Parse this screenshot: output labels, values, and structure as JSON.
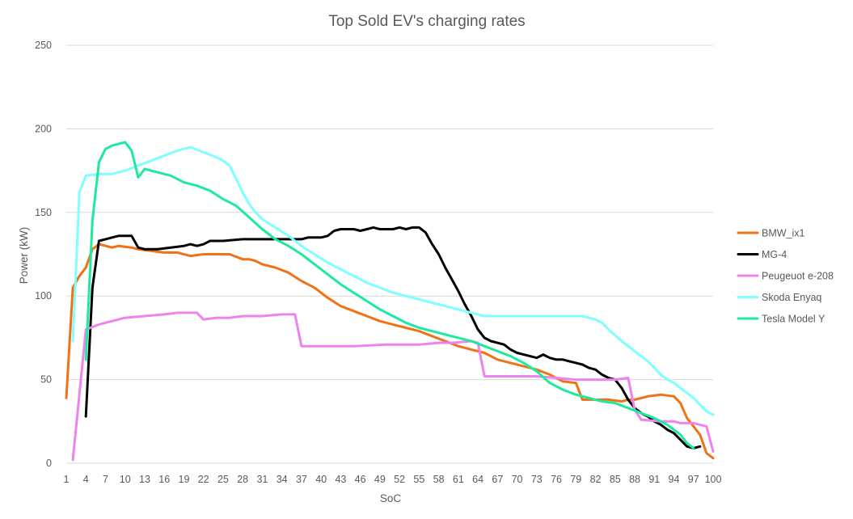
{
  "chart_data": {
    "type": "line",
    "title": "Top Sold EV's charging rates",
    "xlabel": "SoC",
    "ylabel": "Power (kW)",
    "xlim": [
      1,
      100
    ],
    "ylim": [
      0,
      250
    ],
    "yticks": [
      "0",
      "50",
      "100",
      "150",
      "200",
      "250"
    ],
    "xticks": [
      "1",
      "4",
      "7",
      "10",
      "13",
      "16",
      "19",
      "22",
      "25",
      "28",
      "31",
      "34",
      "37",
      "40",
      "43",
      "46",
      "49",
      "52",
      "55",
      "58",
      "61",
      "64",
      "67",
      "70",
      "73",
      "76",
      "79",
      "82",
      "85",
      "88",
      "91",
      "94",
      "97",
      "100"
    ],
    "grid": true,
    "legend_position": "right",
    "series": [
      {
        "name": "BMW_ix1",
        "color": "#F07216",
        "points": [
          [
            1,
            39
          ],
          [
            2,
            105
          ],
          [
            3,
            112
          ],
          [
            4,
            117
          ],
          [
            5,
            128
          ],
          [
            6,
            131
          ],
          [
            8,
            129
          ],
          [
            9,
            130
          ],
          [
            11,
            129
          ],
          [
            12,
            128
          ],
          [
            14,
            127
          ],
          [
            16,
            126
          ],
          [
            18,
            126
          ],
          [
            20,
            124
          ],
          [
            22,
            125
          ],
          [
            24,
            125
          ],
          [
            26,
            125
          ],
          [
            28,
            122
          ],
          [
            29,
            122
          ],
          [
            30,
            121
          ],
          [
            31,
            119
          ],
          [
            33,
            117
          ],
          [
            35,
            114
          ],
          [
            37,
            109
          ],
          [
            39,
            105
          ],
          [
            41,
            99
          ],
          [
            43,
            94
          ],
          [
            45,
            91
          ],
          [
            47,
            88
          ],
          [
            49,
            85
          ],
          [
            51,
            83
          ],
          [
            53,
            81
          ],
          [
            55,
            79
          ],
          [
            57,
            76
          ],
          [
            59,
            73
          ],
          [
            61,
            70
          ],
          [
            63,
            68
          ],
          [
            65,
            66
          ],
          [
            67,
            62
          ],
          [
            69,
            60
          ],
          [
            71,
            58
          ],
          [
            73,
            56
          ],
          [
            75,
            53
          ],
          [
            77,
            49
          ],
          [
            79,
            48
          ],
          [
            80,
            38
          ],
          [
            82,
            38
          ],
          [
            84,
            38
          ],
          [
            86,
            37
          ],
          [
            87,
            38
          ],
          [
            88,
            38
          ],
          [
            90,
            40
          ],
          [
            92,
            41
          ],
          [
            94,
            40
          ],
          [
            95,
            36
          ],
          [
            96,
            27
          ],
          [
            97,
            22
          ],
          [
            98,
            17
          ],
          [
            99,
            6
          ],
          [
            100,
            3
          ]
        ]
      },
      {
        "name": "MG-4",
        "color": "#000000",
        "points": [
          [
            4,
            28
          ],
          [
            5,
            105
          ],
          [
            6,
            133
          ],
          [
            7,
            134
          ],
          [
            8,
            135
          ],
          [
            9,
            136
          ],
          [
            11,
            136
          ],
          [
            12,
            129
          ],
          [
            13,
            128
          ],
          [
            15,
            128
          ],
          [
            17,
            129
          ],
          [
            19,
            130
          ],
          [
            20,
            131
          ],
          [
            21,
            130
          ],
          [
            22,
            131
          ],
          [
            23,
            133
          ],
          [
            25,
            133
          ],
          [
            28,
            134
          ],
          [
            31,
            134
          ],
          [
            34,
            134
          ],
          [
            36,
            134
          ],
          [
            37,
            134
          ],
          [
            38,
            135
          ],
          [
            40,
            135
          ],
          [
            41,
            136
          ],
          [
            42,
            139
          ],
          [
            43,
            140
          ],
          [
            44,
            140
          ],
          [
            45,
            140
          ],
          [
            46,
            139
          ],
          [
            47,
            140
          ],
          [
            48,
            141
          ],
          [
            49,
            140
          ],
          [
            50,
            140
          ],
          [
            51,
            140
          ],
          [
            52,
            141
          ],
          [
            53,
            140
          ],
          [
            54,
            141
          ],
          [
            55,
            141
          ],
          [
            56,
            138
          ],
          [
            57,
            131
          ],
          [
            58,
            125
          ],
          [
            59,
            117
          ],
          [
            60,
            110
          ],
          [
            61,
            103
          ],
          [
            62,
            95
          ],
          [
            63,
            88
          ],
          [
            64,
            80
          ],
          [
            65,
            75
          ],
          [
            66,
            73
          ],
          [
            67,
            72
          ],
          [
            68,
            71
          ],
          [
            69,
            68
          ],
          [
            70,
            66
          ],
          [
            71,
            65
          ],
          [
            72,
            64
          ],
          [
            73,
            63
          ],
          [
            74,
            65
          ],
          [
            75,
            63
          ],
          [
            76,
            62
          ],
          [
            77,
            62
          ],
          [
            78,
            61
          ],
          [
            79,
            60
          ],
          [
            80,
            59
          ],
          [
            81,
            57
          ],
          [
            82,
            56
          ],
          [
            83,
            53
          ],
          [
            84,
            51
          ],
          [
            85,
            50
          ],
          [
            86,
            45
          ],
          [
            87,
            38
          ],
          [
            88,
            33
          ],
          [
            89,
            30
          ],
          [
            90,
            28
          ],
          [
            91,
            25
          ],
          [
            92,
            23
          ],
          [
            93,
            20
          ],
          [
            94,
            18
          ],
          [
            95,
            14
          ],
          [
            96,
            10
          ],
          [
            97,
            9
          ],
          [
            98,
            10
          ]
        ]
      },
      {
        "name": "Peugeuot e-208",
        "color": "#EE82EE",
        "points": [
          [
            2,
            2
          ],
          [
            4,
            80
          ],
          [
            6,
            83
          ],
          [
            8,
            85
          ],
          [
            10,
            87
          ],
          [
            13,
            88
          ],
          [
            16,
            89
          ],
          [
            18,
            90
          ],
          [
            21,
            90
          ],
          [
            22,
            86
          ],
          [
            24,
            87
          ],
          [
            26,
            87
          ],
          [
            28,
            88
          ],
          [
            31,
            88
          ],
          [
            34,
            89
          ],
          [
            36,
            89
          ],
          [
            37,
            70
          ],
          [
            39,
            70
          ],
          [
            41,
            70
          ],
          [
            45,
            70
          ],
          [
            50,
            71
          ],
          [
            55,
            71
          ],
          [
            58,
            72
          ],
          [
            60,
            72
          ],
          [
            63,
            73
          ],
          [
            64,
            72
          ],
          [
            65,
            52
          ],
          [
            67,
            52
          ],
          [
            70,
            52
          ],
          [
            73,
            52
          ],
          [
            76,
            51
          ],
          [
            79,
            50
          ],
          [
            82,
            50
          ],
          [
            85,
            50
          ],
          [
            87,
            51
          ],
          [
            88,
            32
          ],
          [
            89,
            26
          ],
          [
            92,
            25
          ],
          [
            94,
            25
          ],
          [
            95,
            24
          ],
          [
            97,
            24
          ],
          [
            98,
            23
          ],
          [
            99,
            22
          ],
          [
            100,
            7
          ]
        ]
      },
      {
        "name": "Skoda Enyaq",
        "color": "#7FFFFF",
        "points": [
          [
            2,
            73
          ],
          [
            3,
            162
          ],
          [
            4,
            172
          ],
          [
            6,
            173
          ],
          [
            8,
            173
          ],
          [
            10,
            175
          ],
          [
            12,
            178
          ],
          [
            14,
            181
          ],
          [
            16,
            184
          ],
          [
            18,
            187
          ],
          [
            19,
            188
          ],
          [
            20,
            189
          ],
          [
            22,
            186
          ],
          [
            24,
            183
          ],
          [
            25,
            181
          ],
          [
            26,
            178
          ],
          [
            27,
            170
          ],
          [
            28,
            162
          ],
          [
            29,
            155
          ],
          [
            30,
            150
          ],
          [
            31,
            146
          ],
          [
            33,
            141
          ],
          [
            35,
            136
          ],
          [
            37,
            130
          ],
          [
            39,
            125
          ],
          [
            41,
            120
          ],
          [
            43,
            116
          ],
          [
            45,
            112
          ],
          [
            47,
            108
          ],
          [
            49,
            105
          ],
          [
            51,
            102
          ],
          [
            53,
            100
          ],
          [
            55,
            98
          ],
          [
            57,
            96
          ],
          [
            59,
            94
          ],
          [
            61,
            92
          ],
          [
            63,
            90
          ],
          [
            64,
            89
          ],
          [
            65,
            88
          ],
          [
            67,
            88
          ],
          [
            70,
            88
          ],
          [
            73,
            88
          ],
          [
            74,
            88
          ],
          [
            76,
            88
          ],
          [
            78,
            88
          ],
          [
            80,
            88
          ],
          [
            81,
            87
          ],
          [
            82,
            86
          ],
          [
            83,
            84
          ],
          [
            84,
            80
          ],
          [
            86,
            73
          ],
          [
            88,
            67
          ],
          [
            90,
            61
          ],
          [
            91,
            57
          ],
          [
            92,
            53
          ],
          [
            93,
            50
          ],
          [
            94,
            48
          ],
          [
            95,
            45
          ],
          [
            96,
            42
          ],
          [
            97,
            39
          ],
          [
            98,
            35
          ],
          [
            99,
            31
          ],
          [
            100,
            29
          ]
        ]
      },
      {
        "name": "Tesla Model Y",
        "color": "#1DE9A0",
        "points": [
          [
            4,
            62
          ],
          [
            5,
            145
          ],
          [
            6,
            180
          ],
          [
            7,
            188
          ],
          [
            8,
            190
          ],
          [
            10,
            192
          ],
          [
            11,
            187
          ],
          [
            12,
            171
          ],
          [
            13,
            176
          ],
          [
            15,
            174
          ],
          [
            17,
            172
          ],
          [
            19,
            168
          ],
          [
            21,
            166
          ],
          [
            23,
            163
          ],
          [
            25,
            158
          ],
          [
            27,
            154
          ],
          [
            29,
            147
          ],
          [
            31,
            140
          ],
          [
            33,
            134
          ],
          [
            35,
            130
          ],
          [
            37,
            125
          ],
          [
            39,
            119
          ],
          [
            41,
            113
          ],
          [
            43,
            107
          ],
          [
            45,
            102
          ],
          [
            47,
            97
          ],
          [
            49,
            92
          ],
          [
            51,
            88
          ],
          [
            53,
            84
          ],
          [
            55,
            81
          ],
          [
            57,
            79
          ],
          [
            59,
            77
          ],
          [
            61,
            75
          ],
          [
            63,
            73
          ],
          [
            65,
            70
          ],
          [
            67,
            67
          ],
          [
            69,
            64
          ],
          [
            71,
            60
          ],
          [
            73,
            55
          ],
          [
            75,
            48
          ],
          [
            77,
            44
          ],
          [
            79,
            41
          ],
          [
            81,
            39
          ],
          [
            83,
            37
          ],
          [
            85,
            36
          ],
          [
            87,
            33
          ],
          [
            89,
            30
          ],
          [
            91,
            27
          ],
          [
            93,
            23
          ],
          [
            94,
            20
          ],
          [
            95,
            17
          ],
          [
            96,
            12
          ],
          [
            97,
            9
          ]
        ]
      }
    ]
  }
}
